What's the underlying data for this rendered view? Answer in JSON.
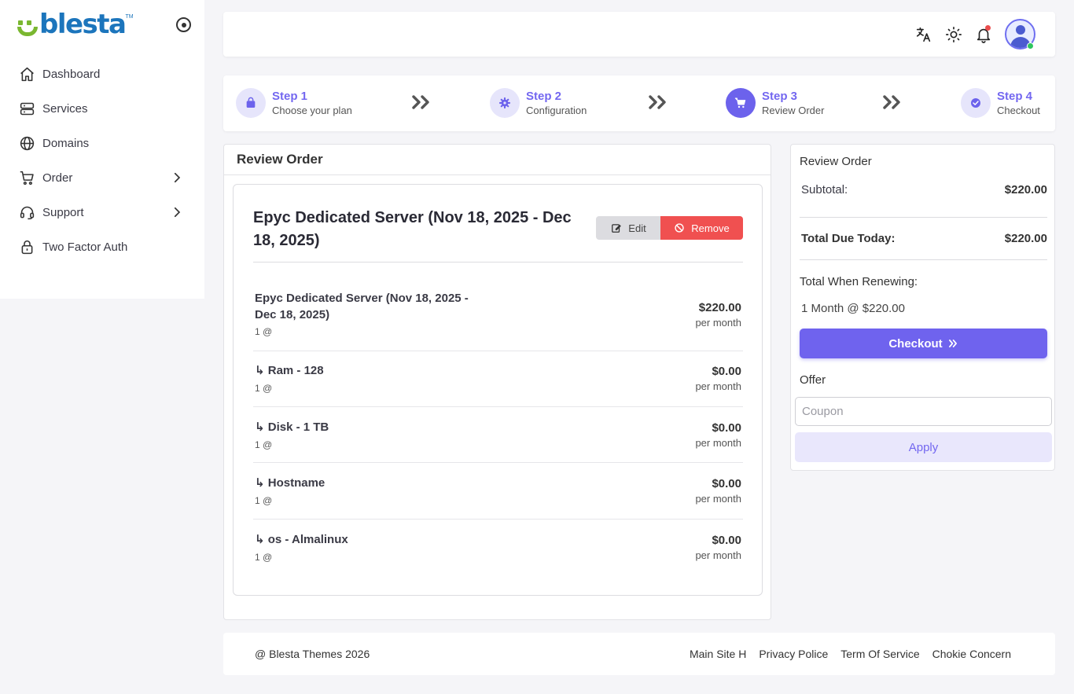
{
  "brand": {
    "name": "blesta",
    "tm": "TM"
  },
  "sidebar": {
    "items": [
      {
        "label": "Dashboard",
        "icon": "home-icon"
      },
      {
        "label": "Services",
        "icon": "server-icon"
      },
      {
        "label": "Domains",
        "icon": "globe-icon"
      },
      {
        "label": "Order",
        "icon": "cart-icon",
        "has_submenu": true
      },
      {
        "label": "Support",
        "icon": "headset-icon",
        "has_submenu": true
      },
      {
        "label": "Two Factor Auth",
        "icon": "lock-icon"
      }
    ]
  },
  "topbar": {
    "icons": [
      "translate-icon",
      "sun-icon",
      "bell-icon",
      "avatar"
    ],
    "notification": true,
    "online": true
  },
  "steps": [
    {
      "title": "Step 1",
      "subtitle": "Choose your plan",
      "icon": "bag-icon",
      "active": false
    },
    {
      "title": "Step 2",
      "subtitle": "Configuration",
      "icon": "gear-icon",
      "active": false
    },
    {
      "title": "Step 3",
      "subtitle": "Review Order",
      "icon": "cart-icon",
      "active": true
    },
    {
      "title": "Step 4",
      "subtitle": "Checkout",
      "icon": "check-circle-icon",
      "active": false
    }
  ],
  "review": {
    "header": "Review Order",
    "item_title": "Epyc Dedicated Server (Nov 18, 2025 - Dec 18, 2025)",
    "edit_label": "Edit",
    "remove_label": "Remove",
    "lines": [
      {
        "name": "Epyc Dedicated Server (Nov 18, 2025 - Dec 18, 2025)",
        "qty": "1 @",
        "price": "$220.00",
        "period": "per month"
      },
      {
        "name": "↳ Ram - 128",
        "qty": "1 @",
        "price": "$0.00",
        "period": "per month"
      },
      {
        "name": "↳ Disk - 1 TB",
        "qty": "1 @",
        "price": "$0.00",
        "period": "per month"
      },
      {
        "name": "↳ Hostname",
        "qty": "1 @",
        "price": "$0.00",
        "period": "per month"
      },
      {
        "name": "↳ os - Almalinux",
        "qty": "1 @",
        "price": "$0.00",
        "period": "per month"
      }
    ]
  },
  "summary": {
    "title": "Review Order",
    "subtotal_label": "Subtotal:",
    "subtotal_value": "$220.00",
    "total_label": "Total Due Today:",
    "total_value": "$220.00",
    "renew_label": "Total When Renewing:",
    "renew_value": "1 Month @ $220.00",
    "checkout_label": "Checkout",
    "offer_label": "Offer",
    "coupon_placeholder": "Coupon",
    "coupon_value": "",
    "apply_label": "Apply"
  },
  "footer": {
    "copyright": "@ Blesta Themes 2026",
    "links": [
      "Main Site H",
      "Privacy Police",
      "Term Of Service",
      "Chokie Concern"
    ]
  },
  "colors": {
    "accent": "#7367f0",
    "danger": "#f05050",
    "brand_blue": "#1c75bc",
    "brand_green": "#7ab730"
  }
}
